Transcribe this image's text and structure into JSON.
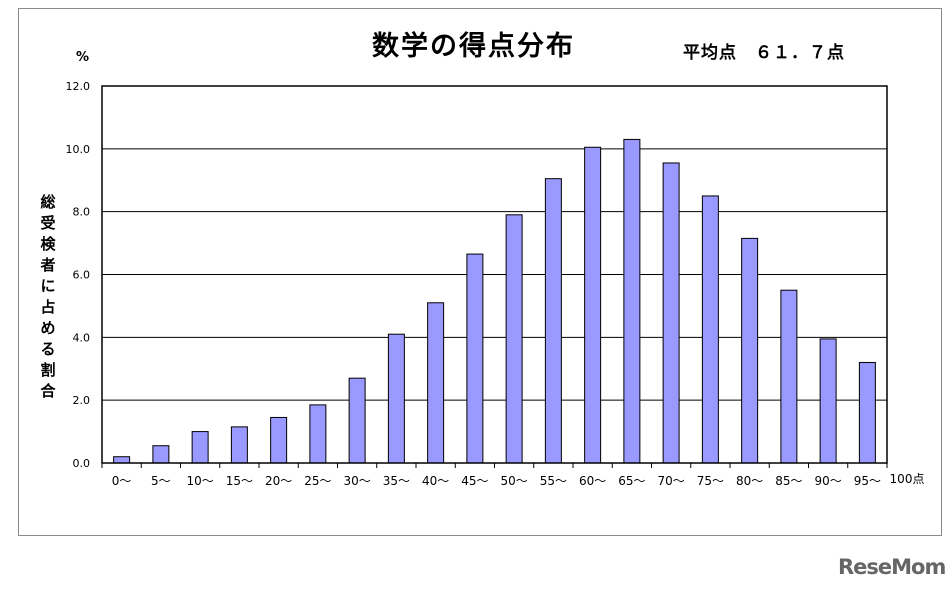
{
  "chart_data": {
    "type": "bar",
    "title": "数学の得点分布",
    "subtitle": "平均点　６１．７点",
    "ylabel_unit": "%",
    "ylabel_chars": [
      "総",
      "受",
      "検",
      "者",
      "に",
      "占",
      "め",
      "る",
      "割",
      "合"
    ],
    "categories": [
      "0～",
      "5～",
      "10～",
      "15～",
      "20～",
      "25～",
      "30～",
      "35～",
      "40～",
      "45～",
      "50～",
      "55～",
      "60～",
      "65～",
      "70～",
      "75～",
      "80～",
      "85～",
      "90～",
      "95～"
    ],
    "x_end_label": "100点",
    "values": [
      0.2,
      0.55,
      1.0,
      1.15,
      1.45,
      1.85,
      2.7,
      4.1,
      5.1,
      6.65,
      7.9,
      9.05,
      10.05,
      10.3,
      9.55,
      8.5,
      7.15,
      5.5,
      3.95,
      3.2
    ],
    "ylim": [
      0,
      12
    ],
    "yticks": [
      "0.0",
      "2.0",
      "4.0",
      "6.0",
      "8.0",
      "10.0",
      "12.0"
    ],
    "grid": true,
    "bar_color": "#9999ff",
    "edge_color": "#000000"
  },
  "watermark": "ReseMom"
}
